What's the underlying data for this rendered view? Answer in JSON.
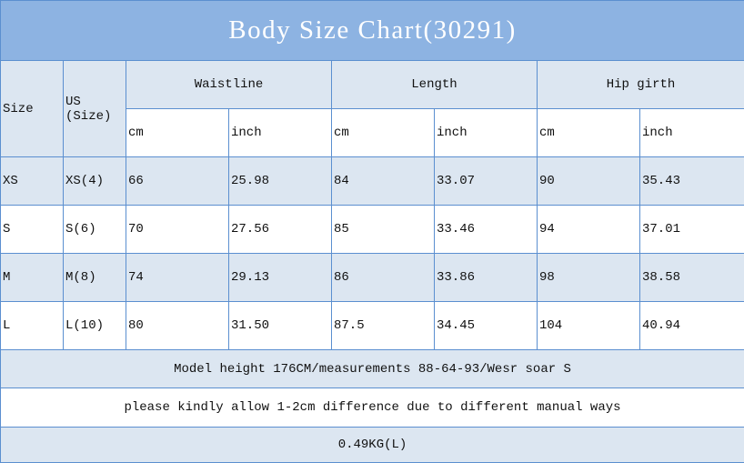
{
  "title": "Body Size Chart(30291)",
  "headers": {
    "size": "Size",
    "us_line1": "US",
    "us_line2": "(Size)",
    "groups": [
      "Waistline",
      "Length",
      "Hip girth"
    ],
    "units": [
      "cm",
      "inch",
      "cm",
      "inch",
      "cm",
      "inch"
    ]
  },
  "rows": [
    {
      "size": "XS",
      "us": "XS(4)",
      "values": [
        "66",
        "25.98",
        "84",
        "33.07",
        "90",
        "35.43"
      ]
    },
    {
      "size": "S",
      "us": "S(6)",
      "values": [
        "70",
        "27.56",
        "85",
        "33.46",
        "94",
        "37.01"
      ]
    },
    {
      "size": "M",
      "us": "M(8)",
      "values": [
        "74",
        "29.13",
        "86",
        "33.86",
        "98",
        "38.58"
      ]
    },
    {
      "size": "L",
      "us": "L(10)",
      "values": [
        "80",
        "31.50",
        "87.5",
        "34.45",
        "104",
        "40.94"
      ]
    }
  ],
  "notes": [
    "Model height 176CM/measurements 88-64-93/Wesr soar S",
    "please kindly allow 1-2cm difference due to different manual ways",
    "0.49KG(L)"
  ],
  "colors": {
    "title_bg": "#8db3e2",
    "row_alt": "#dce6f1",
    "border": "#5b8fd0"
  }
}
